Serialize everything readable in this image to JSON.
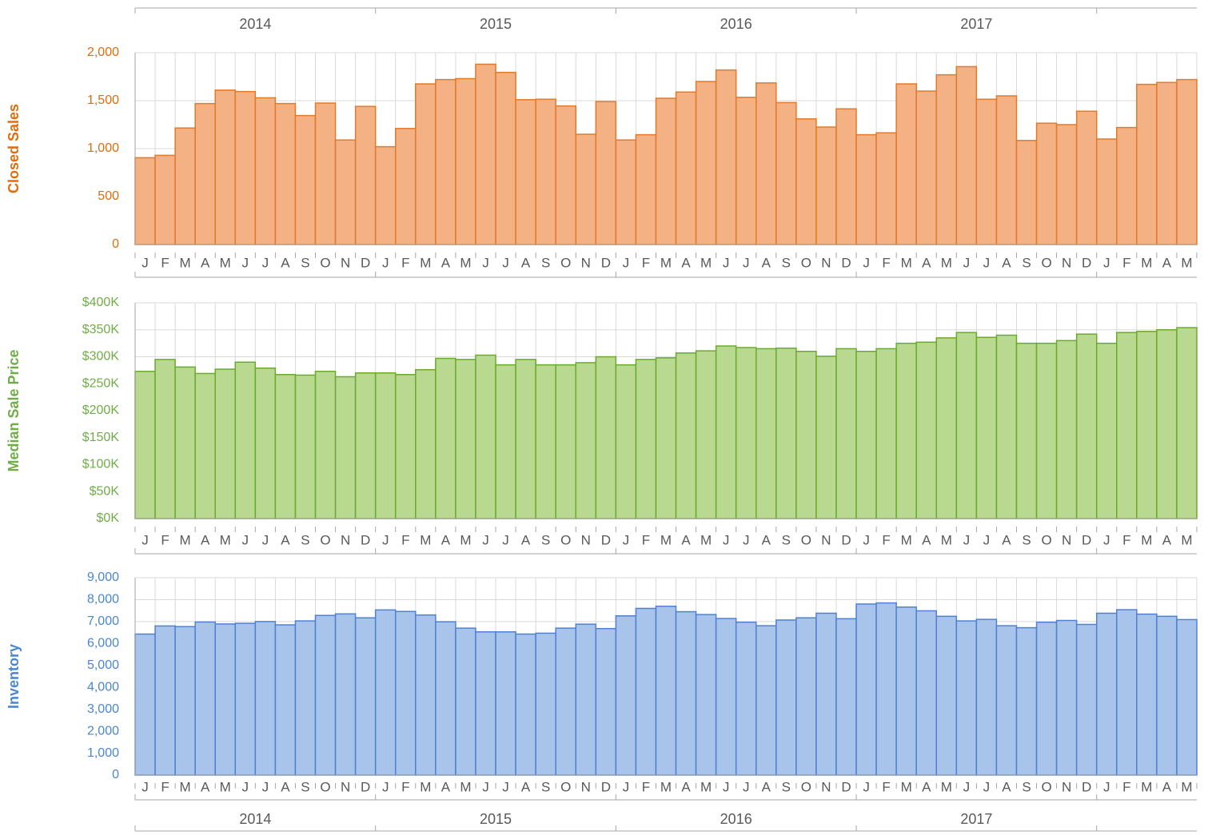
{
  "chart_data": [
    {
      "type": "bar",
      "y_label": "Closed Sales",
      "color": "#f4b183",
      "edge_color": "#e07a2c",
      "label_color": "#e36c0a",
      "grid": true,
      "years": [
        "2014",
        "2015",
        "2016",
        "2017"
      ],
      "categories": [
        "J",
        "F",
        "M",
        "A",
        "M",
        "J",
        "J",
        "A",
        "S",
        "O",
        "N",
        "D",
        "J",
        "F",
        "M",
        "A",
        "M",
        "J",
        "J",
        "A",
        "S",
        "O",
        "N",
        "D",
        "J",
        "F",
        "M",
        "A",
        "M",
        "J",
        "J",
        "A",
        "S",
        "O",
        "N",
        "D",
        "J",
        "F",
        "M",
        "A",
        "M",
        "J",
        "J",
        "A",
        "S",
        "O",
        "N",
        "D",
        "J",
        "F",
        "M",
        "A",
        "M"
      ],
      "values": [
        905,
        930,
        1215,
        1470,
        1610,
        1595,
        1530,
        1470,
        1345,
        1475,
        1090,
        1440,
        1020,
        1210,
        1675,
        1720,
        1730,
        1880,
        1795,
        1510,
        1515,
        1445,
        1150,
        1490,
        1090,
        1145,
        1525,
        1590,
        1700,
        1820,
        1535,
        1685,
        1480,
        1310,
        1225,
        1415,
        1145,
        1165,
        1675,
        1600,
        1770,
        1855,
        1515,
        1550,
        1085,
        1265,
        1250,
        1390,
        1100,
        1220,
        1670,
        1690,
        1720
      ],
      "ylim": [
        0,
        2000
      ],
      "yticks": [
        0,
        500,
        {
          "value": 1000,
          "label": "1,000"
        },
        {
          "value": 1500,
          "label": "1,500"
        },
        {
          "value": 2000,
          "label": "2,000"
        }
      ]
    },
    {
      "type": "bar",
      "y_label": "Median Sale Price",
      "color": "#b9d890",
      "edge_color": "#6aab2f",
      "label_color": "#70ad47",
      "grid": true,
      "categories": [
        "J",
        "F",
        "M",
        "A",
        "M",
        "J",
        "J",
        "A",
        "S",
        "O",
        "N",
        "D",
        "J",
        "F",
        "M",
        "A",
        "M",
        "J",
        "J",
        "A",
        "S",
        "O",
        "N",
        "D",
        "J",
        "F",
        "M",
        "A",
        "M",
        "J",
        "J",
        "A",
        "S",
        "O",
        "N",
        "D",
        "J",
        "F",
        "M",
        "A",
        "M",
        "J",
        "J",
        "A",
        "S",
        "O",
        "N",
        "D",
        "J",
        "F",
        "M",
        "A",
        "M"
      ],
      "values": [
        273000,
        295000,
        281000,
        269000,
        277000,
        290000,
        279000,
        267000,
        266000,
        273000,
        263000,
        270000,
        270000,
        267000,
        276000,
        297000,
        295000,
        303000,
        285000,
        295000,
        285000,
        285000,
        289000,
        300000,
        285000,
        295000,
        298000,
        307000,
        311000,
        320000,
        317000,
        315000,
        316000,
        310000,
        301000,
        315000,
        310000,
        315000,
        325000,
        327000,
        335000,
        345000,
        336000,
        340000,
        325000,
        325000,
        330000,
        342000,
        325000,
        345000,
        347000,
        350000,
        354000
      ],
      "ylim": [
        0,
        400000
      ],
      "yticks": [
        {
          "value": 0,
          "label": "$0K"
        },
        {
          "value": 50000,
          "label": "$50K"
        },
        {
          "value": 100000,
          "label": "$100K"
        },
        {
          "value": 150000,
          "label": "$150K"
        },
        {
          "value": 200000,
          "label": "$200K"
        },
        {
          "value": 250000,
          "label": "$250K"
        },
        {
          "value": 300000,
          "label": "$300K"
        },
        {
          "value": 350000,
          "label": "$350K"
        },
        {
          "value": 400000,
          "label": "$400K"
        }
      ]
    },
    {
      "type": "bar",
      "y_label": "Inventory",
      "color": "#a9c4eb",
      "edge_color": "#4f81d0",
      "label_color": "#4a86d0",
      "grid": true,
      "years": [
        "2014",
        "2015",
        "2016",
        "2017"
      ],
      "categories": [
        "J",
        "F",
        "M",
        "A",
        "M",
        "J",
        "J",
        "A",
        "S",
        "O",
        "N",
        "D",
        "J",
        "F",
        "M",
        "A",
        "M",
        "J",
        "J",
        "A",
        "S",
        "O",
        "N",
        "D",
        "J",
        "F",
        "M",
        "A",
        "M",
        "J",
        "J",
        "A",
        "S",
        "O",
        "N",
        "D",
        "J",
        "F",
        "M",
        "A",
        "M",
        "J",
        "J",
        "A",
        "S",
        "O",
        "N",
        "D",
        "J",
        "F",
        "M",
        "A",
        "M"
      ],
      "values": [
        6430,
        6800,
        6770,
        6980,
        6890,
        6920,
        7000,
        6850,
        7030,
        7280,
        7350,
        7170,
        7530,
        7460,
        7300,
        6990,
        6700,
        6530,
        6530,
        6430,
        6470,
        6700,
        6880,
        6680,
        7260,
        7600,
        7700,
        7450,
        7320,
        7140,
        6970,
        6810,
        7070,
        7170,
        7380,
        7130,
        7800,
        7850,
        7660,
        7490,
        7240,
        7030,
        7100,
        6810,
        6720,
        6970,
        7050,
        6870,
        7380,
        7540,
        7340,
        7240,
        7090
      ],
      "ylim": [
        0,
        9000
      ],
      "yticks": [
        0,
        {
          "value": 1000,
          "label": "1,000"
        },
        {
          "value": 2000,
          "label": "2,000"
        },
        {
          "value": 3000,
          "label": "3,000"
        },
        {
          "value": 4000,
          "label": "4,000"
        },
        {
          "value": 5000,
          "label": "5,000"
        },
        {
          "value": 6000,
          "label": "6,000"
        },
        {
          "value": 7000,
          "label": "7,000"
        },
        {
          "value": 8000,
          "label": "8,000"
        },
        {
          "value": 9000,
          "label": "9,000"
        }
      ]
    }
  ]
}
